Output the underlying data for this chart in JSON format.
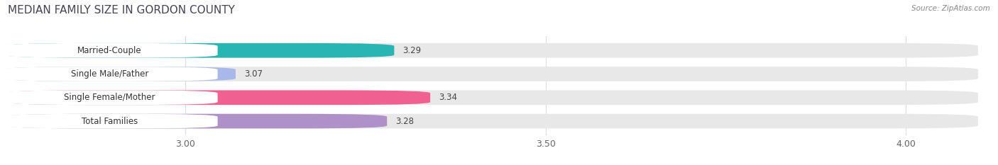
{
  "title": "MEDIAN FAMILY SIZE IN GORDON COUNTY",
  "source": "Source: ZipAtlas.com",
  "categories": [
    "Married-Couple",
    "Single Male/Father",
    "Single Female/Mother",
    "Total Families"
  ],
  "values": [
    3.29,
    3.07,
    3.34,
    3.28
  ],
  "bar_colors": [
    "#2ab5b5",
    "#a8b8e8",
    "#f06090",
    "#b090c8"
  ],
  "bar_bg_color": "#e8e8e8",
  "xlim_min": 2.75,
  "xlim_max": 4.1,
  "xticks": [
    3.0,
    3.5,
    4.0
  ],
  "xtick_labels": [
    "3.00",
    "3.50",
    "4.00"
  ],
  "title_fontsize": 11,
  "label_fontsize": 8.5,
  "value_fontsize": 8.5,
  "bar_height": 0.62,
  "background_color": "#ffffff",
  "grid_color": "#dddddd",
  "text_color": "#555555",
  "title_color": "#444455"
}
